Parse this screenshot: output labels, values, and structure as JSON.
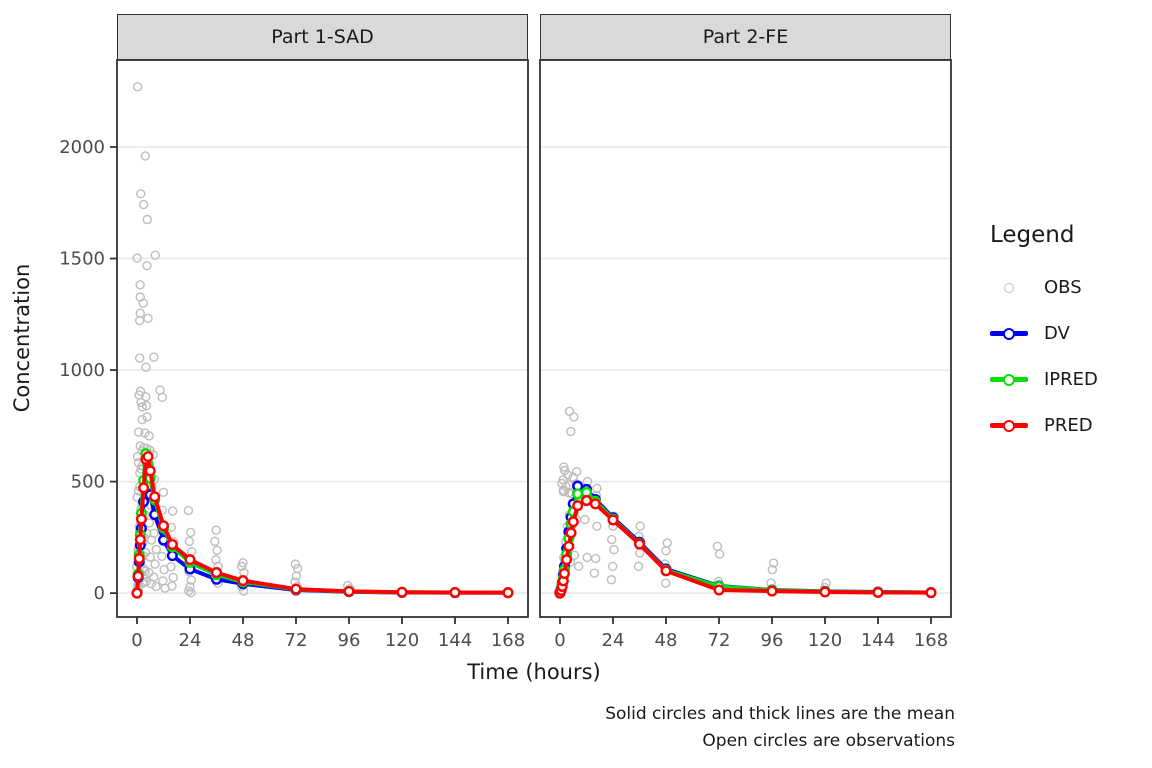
{
  "figure": {
    "ylabel": "Concentration",
    "xlabel": "Time (hours)",
    "caption_line1": "Solid circles and thick lines are the mean",
    "caption_line2": "Open circles are observations"
  },
  "legend": {
    "title": "Legend",
    "entries": [
      {
        "label": "OBS",
        "type": "point",
        "color": "#BDBDBD"
      },
      {
        "label": "DV",
        "type": "line",
        "color": "#0000FF"
      },
      {
        "label": "IPRED",
        "type": "line",
        "color": "#00E000"
      },
      {
        "label": "PRED",
        "type": "line",
        "color": "#FF0000"
      }
    ]
  },
  "style": {
    "obs_color": "#BDBDBD",
    "grid_color": "#ECECEC",
    "panel_border": "#333333",
    "tick_text": "#4D4D4D",
    "strip_fill": "#D9D9D9"
  },
  "chart_data": {
    "type": "line",
    "title": "",
    "xlabel": "Time (hours)",
    "ylabel": "Concentration",
    "x_ticks": [
      0,
      24,
      48,
      72,
      96,
      120,
      144,
      168
    ],
    "y_ticks": [
      0,
      500,
      1000,
      1500,
      2000
    ],
    "x_max": 168,
    "y_range": [
      -107,
      2390
    ],
    "grid": "horizontal-major-only",
    "legend_position": "right",
    "time": [
      0,
      0.5,
      1,
      1.5,
      2,
      3,
      4,
      5,
      6,
      8,
      12,
      16,
      24,
      36,
      48,
      72,
      96,
      120,
      144,
      168
    ],
    "facets": [
      {
        "label": "Part 1-SAD",
        "series": [
          {
            "name": "DV",
            "color": "#0000FF",
            "values": [
              0,
              70,
              140,
              215,
              290,
              410,
              505,
              480,
              440,
              352,
              238,
              168,
              108,
              62,
              42,
              14,
              6,
              3,
              2,
              2
            ]
          },
          {
            "name": "IPRED",
            "color": "#00E000",
            "values": [
              0,
              85,
              172,
              262,
              358,
              505,
              625,
              580,
              515,
              418,
              292,
              208,
              138,
              82,
              50,
              17,
              7,
              4,
              3,
              2
            ]
          },
          {
            "name": "PRED",
            "color": "#FF0000",
            "values": [
              0,
              76,
              155,
              240,
              332,
              472,
              600,
              612,
              548,
              432,
              302,
              218,
              150,
              92,
              56,
              18,
              8,
              4,
              3,
              2
            ]
          }
        ],
        "observations": [
          [
            1,
            2270
          ],
          [
            3.5,
            1960
          ],
          [
            2,
            1790
          ],
          [
            2.3,
            1742
          ],
          [
            4.5,
            1675
          ],
          [
            0.5,
            1502
          ],
          [
            7.7,
            1515
          ],
          [
            4.5,
            1468
          ],
          [
            2,
            1382
          ],
          [
            1,
            1327
          ],
          [
            3,
            1300
          ],
          [
            2.2,
            1255
          ],
          [
            4.7,
            1232
          ],
          [
            1.5,
            1222
          ],
          [
            0.5,
            1054
          ],
          [
            7.5,
            1058
          ],
          [
            4.5,
            1013
          ],
          [
            1,
            905
          ],
          [
            4,
            880
          ],
          [
            11,
            910
          ],
          [
            11,
            878
          ],
          [
            2,
            855
          ],
          [
            5,
            840
          ],
          [
            0.7,
            888
          ],
          [
            2.7,
            835
          ],
          [
            3.8,
            790
          ],
          [
            2.2,
            778
          ],
          [
            1.2,
            722
          ],
          [
            3,
            718
          ],
          [
            5.5,
            705
          ],
          [
            2,
            660
          ],
          [
            4,
            648
          ],
          [
            6,
            640
          ],
          [
            8,
            620
          ],
          [
            0,
            0
          ],
          [
            0,
            4
          ],
          [
            0,
            9
          ],
          [
            0.5,
            585
          ],
          [
            0.5,
            430
          ],
          [
            0.5,
            298
          ],
          [
            0.5,
            186
          ],
          [
            0.5,
            118
          ],
          [
            0.5,
            57
          ],
          [
            0.5,
            22
          ],
          [
            1,
            612
          ],
          [
            1,
            538
          ],
          [
            1,
            458
          ],
          [
            1,
            376
          ],
          [
            1,
            282
          ],
          [
            1,
            198
          ],
          [
            1,
            128
          ],
          [
            1,
            68
          ],
          [
            1,
            33
          ],
          [
            2,
            638
          ],
          [
            2,
            556
          ],
          [
            2,
            477
          ],
          [
            2,
            398
          ],
          [
            2,
            312
          ],
          [
            2,
            228
          ],
          [
            2,
            158
          ],
          [
            2,
            88
          ],
          [
            2,
            44
          ],
          [
            3,
            652
          ],
          [
            3,
            572
          ],
          [
            3,
            488
          ],
          [
            3,
            408
          ],
          [
            3,
            328
          ],
          [
            3,
            248
          ],
          [
            3,
            168
          ],
          [
            3,
            98
          ],
          [
            3,
            50
          ],
          [
            4,
            600
          ],
          [
            4,
            520
          ],
          [
            4,
            435
          ],
          [
            4,
            352
          ],
          [
            4,
            268
          ],
          [
            4,
            182
          ],
          [
            4,
            108
          ],
          [
            4,
            52
          ],
          [
            6,
            568
          ],
          [
            6,
            478
          ],
          [
            6,
            395
          ],
          [
            6,
            315
          ],
          [
            6,
            238
          ],
          [
            6,
            162
          ],
          [
            6,
            92
          ],
          [
            6,
            42
          ],
          [
            8,
            510
          ],
          [
            8,
            428
          ],
          [
            8,
            345
          ],
          [
            8,
            268
          ],
          [
            8,
            196
          ],
          [
            8,
            130
          ],
          [
            8,
            72
          ],
          [
            8,
            30
          ],
          [
            12,
            452
          ],
          [
            12,
            372
          ],
          [
            12,
            298
          ],
          [
            12,
            230
          ],
          [
            12,
            165
          ],
          [
            12,
            105
          ],
          [
            12,
            55
          ],
          [
            12,
            22
          ],
          [
            16,
            368
          ],
          [
            16,
            295
          ],
          [
            16,
            230
          ],
          [
            16,
            172
          ],
          [
            16,
            118
          ],
          [
            16,
            70
          ],
          [
            16,
            32
          ],
          [
            24,
            370
          ],
          [
            24,
            272
          ],
          [
            24,
            232
          ],
          [
            24,
            186
          ],
          [
            24,
            142
          ],
          [
            24,
            96
          ],
          [
            24,
            58
          ],
          [
            24,
            28
          ],
          [
            24,
            10
          ],
          [
            24,
            2
          ],
          [
            36,
            282
          ],
          [
            36,
            232
          ],
          [
            36,
            192
          ],
          [
            36,
            150
          ],
          [
            36,
            120
          ],
          [
            36,
            98
          ],
          [
            36,
            70
          ],
          [
            36,
            44
          ],
          [
            48,
            136
          ],
          [
            48,
            120
          ],
          [
            48,
            92
          ],
          [
            48,
            62
          ],
          [
            48,
            30
          ],
          [
            48,
            10
          ],
          [
            72,
            130
          ],
          [
            72,
            110
          ],
          [
            72,
            76
          ],
          [
            72,
            50
          ],
          [
            72,
            30
          ],
          [
            72,
            10
          ],
          [
            96,
            34
          ],
          [
            96,
            20
          ]
        ]
      },
      {
        "label": "Part 2-FE",
        "series": [
          {
            "name": "DV",
            "color": "#0000FF",
            "values": [
              0,
              18,
              45,
              80,
              120,
              200,
              275,
              340,
              400,
              480,
              465,
              420,
              338,
              228,
              108,
              32,
              14,
              8,
              5,
              3
            ]
          },
          {
            "name": "IPRED",
            "color": "#00E000",
            "values": [
              0,
              15,
              38,
              68,
              105,
              175,
              245,
              310,
              365,
              445,
              452,
              412,
              332,
              222,
              103,
              30,
              13,
              7,
              4,
              3
            ]
          },
          {
            "name": "PRED",
            "color": "#FF0000",
            "values": [
              0,
              12,
              30,
              55,
              88,
              150,
              210,
              270,
              320,
              392,
              415,
              400,
              328,
              220,
              100,
              14,
              9,
              5,
              3,
              2
            ]
          }
        ],
        "observations": [
          [
            5,
            815
          ],
          [
            6,
            790
          ],
          [
            5.2,
            725
          ],
          [
            1,
            565
          ],
          [
            2,
            550
          ],
          [
            8,
            545
          ],
          [
            3,
            530
          ],
          [
            6,
            520
          ],
          [
            2,
            508
          ],
          [
            12,
            500
          ],
          [
            1,
            492
          ],
          [
            8,
            490
          ],
          [
            4,
            485
          ],
          [
            3,
            478
          ],
          [
            16,
            470
          ],
          [
            12,
            468
          ],
          [
            2,
            462
          ],
          [
            1,
            455
          ],
          [
            4,
            450
          ],
          [
            6,
            446
          ],
          [
            16,
            438
          ],
          [
            0,
            0
          ],
          [
            0,
            5
          ],
          [
            0.5,
            55
          ],
          [
            0.5,
            22
          ],
          [
            1,
            160
          ],
          [
            1,
            95
          ],
          [
            1,
            40
          ],
          [
            2,
            230
          ],
          [
            2,
            150
          ],
          [
            2,
            70
          ],
          [
            3,
            300
          ],
          [
            3,
            205
          ],
          [
            3,
            110
          ],
          [
            4,
            350
          ],
          [
            4,
            250
          ],
          [
            4,
            140
          ],
          [
            6,
            400
          ],
          [
            6,
            305
          ],
          [
            6,
            170
          ],
          [
            8,
            430
          ],
          [
            8,
            330
          ],
          [
            8,
            120
          ],
          [
            12,
            430
          ],
          [
            12,
            330
          ],
          [
            12,
            160
          ],
          [
            16,
            420
          ],
          [
            16,
            300
          ],
          [
            16,
            155
          ],
          [
            16,
            90
          ],
          [
            24,
            345
          ],
          [
            24,
            300
          ],
          [
            24,
            240
          ],
          [
            24,
            195
          ],
          [
            24,
            120
          ],
          [
            24,
            60
          ],
          [
            36,
            300
          ],
          [
            36,
            255
          ],
          [
            36,
            225
          ],
          [
            36,
            180
          ],
          [
            36,
            120
          ],
          [
            48,
            225
          ],
          [
            48,
            190
          ],
          [
            48,
            130
          ],
          [
            48,
            100
          ],
          [
            48,
            45
          ],
          [
            72,
            210
          ],
          [
            72,
            175
          ],
          [
            72,
            52
          ],
          [
            96,
            135
          ],
          [
            96,
            105
          ],
          [
            96,
            45
          ],
          [
            120,
            45
          ],
          [
            120,
            25
          ]
        ]
      }
    ]
  }
}
